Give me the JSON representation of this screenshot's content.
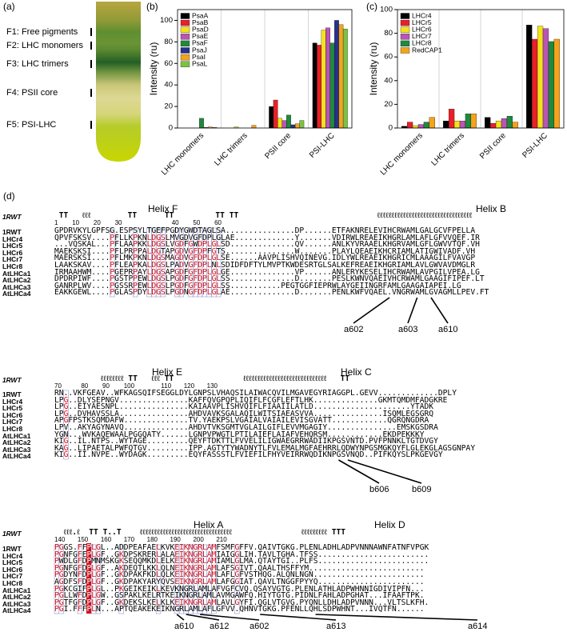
{
  "panel_a": {
    "label": "(a)",
    "bands": [
      "F1: Free pigments",
      "F2: LHC monomers",
      "F3: LHC trimers",
      "F4: PSII core",
      "F5: PSI-LHC"
    ]
  },
  "chart_data": [
    {
      "type": "bar",
      "label": "(b)",
      "ylabel": "Intensity (ru)",
      "categories": [
        "LHC monomers",
        "LHC trimers",
        "PSII core",
        "PSI-LHC"
      ],
      "series": [
        {
          "name": "PsaA",
          "color": "#000000",
          "values": [
            0,
            0,
            20,
            79
          ]
        },
        {
          "name": "PsaB",
          "color": "#e8202a",
          "values": [
            0,
            0,
            26,
            77
          ]
        },
        {
          "name": "PsaD",
          "color": "#f4e21a",
          "values": [
            0,
            1,
            9,
            91
          ]
        },
        {
          "name": "PsaE",
          "color": "#b955b5",
          "values": [
            0,
            0,
            7,
            93
          ]
        },
        {
          "name": "PsaF",
          "color": "#1f8a3c",
          "values": [
            9,
            0,
            12,
            79
          ]
        },
        {
          "name": "PsaJ",
          "color": "#26318a",
          "values": [
            0.5,
            0,
            3,
            100
          ]
        },
        {
          "name": "PsaI",
          "color": "#f5a21d",
          "values": [
            1,
            2.5,
            4,
            96
          ]
        },
        {
          "name": "PsaL",
          "color": "#7cc242",
          "values": [
            0.5,
            0,
            7,
            92
          ]
        }
      ],
      "ylim": [
        0,
        110
      ],
      "yticks": [
        0,
        20,
        40,
        60,
        80,
        100
      ],
      "legend": "upper left"
    },
    {
      "type": "bar",
      "label": "(c)",
      "ylabel": "Intensity (ru)",
      "categories": [
        "LHC monomers",
        "LHC trimers",
        "PSII core",
        "PSI-LHC"
      ],
      "series": [
        {
          "name": "LHCr4",
          "color": "#000000",
          "values": [
            1.5,
            6,
            9,
            87
          ]
        },
        {
          "name": "LHCr5",
          "color": "#e8202a",
          "values": [
            5,
            16,
            4,
            75
          ]
        },
        {
          "name": "LHCr6",
          "color": "#f4e21a",
          "values": [
            2,
            6,
            6,
            86
          ]
        },
        {
          "name": "LHCr7",
          "color": "#b955b5",
          "values": [
            3,
            6,
            8,
            84
          ]
        },
        {
          "name": "LHCr8",
          "color": "#1f8a3c",
          "values": [
            5,
            12,
            10,
            73
          ]
        },
        {
          "name": "RedCAP1",
          "color": "#f5a21d",
          "values": [
            9,
            12,
            5,
            75
          ]
        }
      ],
      "ylim": [
        0,
        100
      ],
      "yticks": [
        0,
        20,
        40,
        60,
        80,
        100
      ],
      "legend": "upper left"
    }
  ],
  "alignment": {
    "label": "(d)",
    "blocks": [
      {
        "helices": [
          "Helix F",
          "Helix B"
        ],
        "struct_name": "1RWT",
        "struct": " TT   ℓℓℓ        TT      TT         TT TT                              ℓℓℓℓℓℓℓℓℓℓℓℓℓℓℓℓℓℓℓℓℓℓℓℓℓℓℓℓℓℓℓℓℓ",
        "ruler": "1        10        20        30                            40        50        60",
        "rows": [
          {
            "name": "1RWT",
            "seq": "GPDRVKYLGPFSG.ESPSYLTGEFPGDYGWDTAGLSA...............DP......ETFAKNRELEVIHCRWAMLGALGCVFPELLA"
          },
          {
            "name": "LHCr4",
            "seq": "QPVFSKSV....PFLLKPKNLDGSLMVGDVGFDPLGLAE.............Y.......VDIRWLREAEIKHGRLAMLAFLGFVVQEF.IR"
          },
          {
            "name": "LHCr5",
            "seq": "...VQSKAL...PFLAAPKKLDGSLVGDFGWDPLGLSD..............QV......ANLKYVRAAELKHGRVAMLGFLGWVVTQF.VH"
          },
          {
            "name": "LHCr6",
            "seq": "MAEKSKSI....PFLPRPPALDGTAPGDVGFDPFGTS...............W.......PLAYLQEAEIKHCRIAMLATIGWIVADF.VH"
          },
          {
            "name": "LHCr7",
            "seq": "MAERSKSI....PFLMKPKNLDGSMAGDVGFDPLGLSE......AAVPLISHVQINEVG.IDLYWLREAEIKHGRICMLAAAGILFVAVGP"
          },
          {
            "name": "LHCr8",
            "seq": "LAAKSKAV....PFLEAPKALDGSLPADVGFDPLNLSDIDFDFTYLMVPTKWDESRTGLSALKEFREAEIKHGRIAMLAVLGWVAVDMGLR"
          },
          {
            "name": "AtLHCa1",
            "seq": "IRMAAHWM....PGEPRPAYLDGSAPGDFGFDPLGLGE..............VP......ANLERYKESELIHCRWAMLAVPGILVPEA.LG"
          },
          {
            "name": "AtLHCa2",
            "seq": "DPDRPIWF....PGSTPPEWLDGSLPGDFGFDPLGLSS..............D.......PESLKWNVQAEIVHCRWAMLGAAGIFIPEF.LT"
          },
          {
            "name": "AtLHCa3",
            "seq": "GANRPLWV....PGSSRPEWLDGSLPGDFGFDPLGLSS...........PEGTGGFIEPRWLAYGEIINGRFAMLGAAGAIAPEI.LG"
          },
          {
            "name": "AtLHCa4",
            "seq": "EAKKGEWL....PGLASPDYLDGSLPGDNGFDPLGLAE..............D.......PENLKWFVQAEL.VNGRWAMLGVAGMLLPEV.FT"
          }
        ],
        "annotations": [
          "a602",
          "a603",
          "a610"
        ]
      },
      {
        "helices": [
          "Helix E",
          "Helix C"
        ],
        "struct_name": "1RWT",
        "struct": "          ℓℓℓℓℓℓℓℓ TT   ℓℓℓ TT               ℓℓℓℓℓℓℓℓℓℓℓℓℓℓℓℓℓℓℓℓℓℓℓℓℓℓℓℓℓ   TT",
        "ruler": "70           80        90        100               110       120       130",
        "rows": [
          {
            "name": "1RWT",
            "seq": "RN..VKFGEAV..WFKAGSQIFSEGGLDYLGNPSLVHAQSILAIWACQVILMGAVEGYRIAGGPL.GEVV.............DPLY"
          },
          {
            "name": "LHCr4",
            "seq": "LPG..DLYSEPNGV...............KAFFQVGPQPLIQIFLFCGFLEFTLHK..............GKMTQMDMFADGKRE"
          },
          {
            "name": "LHCr5",
            "seq": "LPG..EIYAESNPL...............KAIAAVPLISHVQIFLFIAAIILATLD.....................YTADK"
          },
          {
            "name": "LHCr6",
            "seq": "LPG..DVHAVSSLA...............AHDVAVKSGALAQILWITSIAEASVVA...............ISQMLEGSGRQ"
          },
          {
            "name": "LHCr7",
            "seq": "APGFPSTKSQMDAFW..............TV.YAEKPSLVGAIALVAIAILEVISGVATT............QGRQNGDRA"
          },
          {
            "name": "LHCr8",
            "seq": "LPV..AKYAGYNAVQ..............AHDVTVKSGMTVGLAILGIFLEVVMGAGIY...............EMSKGSDRA"
          },
          {
            "name": "AtLHCa1",
            "seq": "YGN...WVKAQEWAALPGGQATY......LGNPVPWGTLPTILAIEFLAIAFVEHQRSM............EKDPEKKKY"
          },
          {
            "name": "AtLHCa2",
            "seq": "KIG..IL.NTPS..WYTAGE.........QEYFTDKTTLFVVELILIGWAEGRRWADIIKPGSVNTD.PVFPNNKLTGTDVGY"
          },
          {
            "name": "AtLHCa3",
            "seq": "KAG..LIPAETALPWFQTGV.........IPP.AGTYTYWADNYTLFVLEMALMGFAEHRRLQDWYNPGSMGKQYFLGLEKGLAGSGNPAY"
          },
          {
            "name": "AtLHCa4",
            "seq": "KIG..II.NVPE..WYDAGK.........EQYFASSSTLFVIEFILFHYVEIRRWQDIKNPGSVNQD..PIFKQYSLPKGEVGY"
          }
        ],
        "annotations": [
          "b606",
          "b609"
        ]
      },
      {
        "helices": [
          "Helix A",
          "Helix D"
        ],
        "struct_name": "1RWT",
        "struct": "  ℓℓℓ.ℓ  TT T..T    ℓℓℓℓℓℓℓℓℓℓℓℓℓℓℓℓℓℓℓℓℓℓℓℓℓℓℓℓℓℓℓℓ               ℓℓℓℓℓℓℓℓℓ TTT",
        "ruler": "140       150       160       170       180       190       200       210",
        "rows": [
          {
            "name": "1RWT",
            "seq": "PGGS.FFPLGL..ADDPEAFAELKVKEIKNGRLAMFSMFGFFV.QAIVTGKG.PLENLADHLADPVNNNAWNFATNFVPGK"
          },
          {
            "name": "LHCr4",
            "seq": "PGNFGFEPLGF..GKDPSKRERLALAEIKNGRLAMIAIGGLIH.TAVLTGHA.TFSS........................"
          },
          {
            "name": "LHCr5",
            "seq": "PWDLGFDPMNMSKGKSEQQMKDLELKEIKNGRLAMIAMLGLMA.QTAYTGI..PLFS........................"
          },
          {
            "name": "LHCr6",
            "seq": "PGNFGFDPLGF..AKDEQTLKKLQLNEIKNGRLAMLAFSGIVT.QAALTHSFFYM........................."
          },
          {
            "name": "LHCr7",
            "seq": "PGDYNFDPLGF..GKDPAKFKDLQLKEIKNGRLAMLAFLGFVSTHQG.ALQNLNGN........................"
          },
          {
            "name": "LHCr8",
            "seq": "AGDFSFDPLGF..GKDPAKYARYQVSEIKNGRLAMLAFGGIAT.QAVLTNGGFPYYQ......................."
          },
          {
            "name": "AtLHCa1",
            "seq": "PGKCGIFPLGL..PKGEIKEIKLKEVKNGRLAMLAFVGFCVQ.QSAYVGTG.PLENLATHLADPWHNNIGDIVIPFN..."
          },
          {
            "name": "AtLHCa2",
            "seq": "PGLLWFDPLGW..GSPAKLKELRTKEIKNGRLAMLAVMGAWFQ.HIYTGTG.PIDNLFAHLADPGHAT...IFAAFTPK."
          },
          {
            "name": "AtLHCa3",
            "seq": "PGTFGFDPLGF..GKDEKSLKELKLKEIKNGRLAMLAVLGYFI.QGLVTGVG.PYQNLLDHLADPVNNN...VLTSLKFH."
          },
          {
            "name": "AtLHCa4",
            "seq": "PGI.FFFPLN...APTQEAKEKEIKNGRLAMLAFLGFVV.QHNVTGKG.PFENLLQHLSDPWHNT...IVQTFN......"
          }
        ],
        "annotations": [
          "a610",
          "a612",
          "a602",
          "a613",
          "a614"
        ]
      }
    ]
  }
}
